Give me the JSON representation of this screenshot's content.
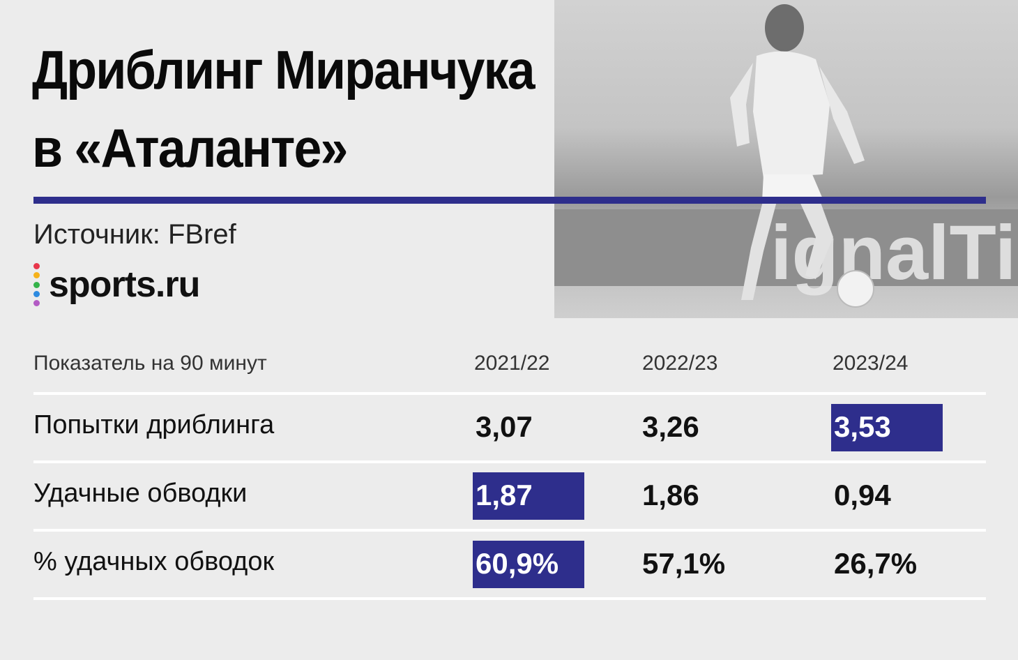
{
  "title_line1": "Дриблинг Миранчука",
  "title_line2": "в «Аталанте»",
  "source": "Источник: FBref",
  "logo": {
    "text": "sports.ru",
    "dot_colors": [
      "#e8364b",
      "#f6b21a",
      "#35b34a",
      "#2e8be0",
      "#b35bc4"
    ]
  },
  "accent_color": "#2e2e8c",
  "table": {
    "headers": [
      "Показатель на 90 минут",
      "2021/22",
      "2022/23",
      "2023/24"
    ],
    "rows": [
      {
        "label": "Попытки дриблинга",
        "values": [
          "3,07",
          "3,26",
          "3,53"
        ],
        "highlight": 2
      },
      {
        "label": "Удачные обводки",
        "values": [
          "1,87",
          "1,86",
          "0,94"
        ],
        "highlight": 0
      },
      {
        "label": "% удачных обводок",
        "values": [
          "60,9%",
          "57,1%",
          "26,7%"
        ],
        "highlight": 0
      }
    ]
  },
  "photo": {
    "icon": "football-player-photo"
  }
}
